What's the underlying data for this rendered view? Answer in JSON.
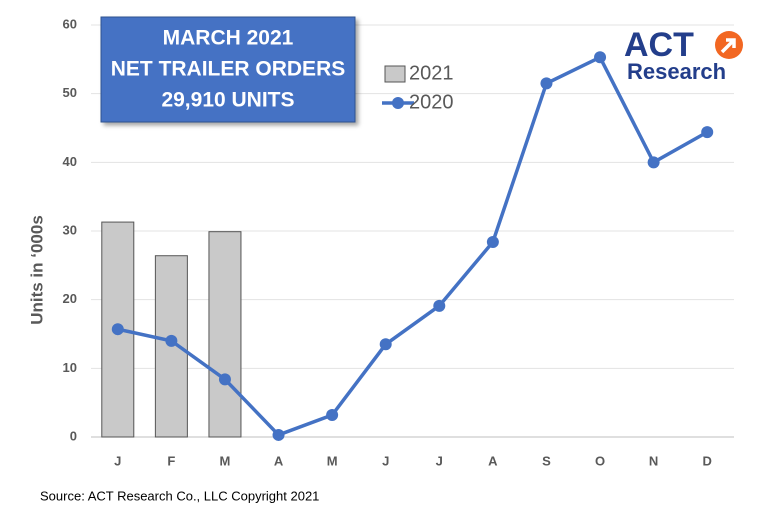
{
  "chart_data": {
    "type": "combo",
    "title_lines": [
      "MARCH 2021",
      "NET TRAILER ORDERS",
      "29,910 UNITS"
    ],
    "y_label": "Units in ‘000s",
    "categories": [
      "J",
      "F",
      "M",
      "A",
      "M",
      "J",
      "J",
      "A",
      "S",
      "O",
      "N",
      "D"
    ],
    "series": [
      {
        "name": "2021",
        "kind": "bar",
        "color": "#c9c9c9",
        "values": [
          31.3,
          26.4,
          29.9,
          null,
          null,
          null,
          null,
          null,
          null,
          null,
          null,
          null
        ]
      },
      {
        "name": "2020",
        "kind": "line",
        "color": "#4472c4",
        "values": [
          15.7,
          14.0,
          8.4,
          0.3,
          3.2,
          13.5,
          19.1,
          28.4,
          51.5,
          55.3,
          40.0,
          44.4
        ]
      }
    ],
    "ylim": [
      0,
      60
    ],
    "yticks": [
      0,
      10,
      20,
      30,
      40,
      50,
      60
    ],
    "grid": true
  },
  "logo": {
    "top": "ACT",
    "bottom": "Research"
  },
  "source": "Source: ACT Research Co., LLC  Copyright 2021"
}
